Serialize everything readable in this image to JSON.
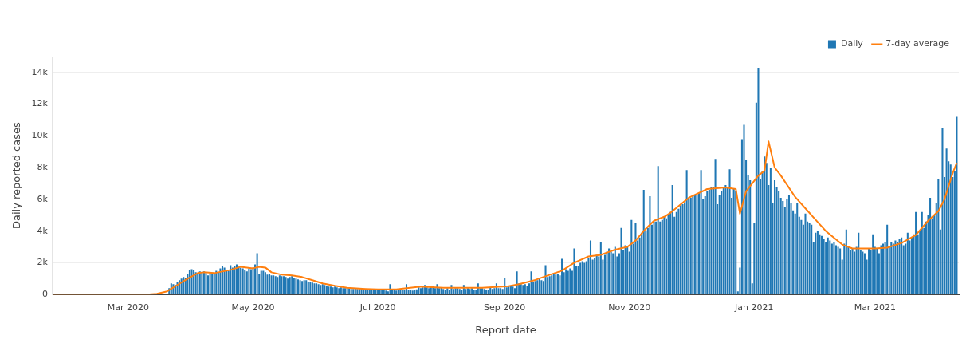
{
  "chart_data": {
    "type": "bar",
    "xlabel": "Report date",
    "ylabel": "Daily reported cases",
    "xlim": [
      "2020-01-24",
      "2021-04-11"
    ],
    "xticks": [
      {
        "value": "2020-03-01",
        "label": "Mar 2020"
      },
      {
        "value": "2020-05-01",
        "label": "May 2020"
      },
      {
        "value": "2020-07-01",
        "label": "Jul 2020"
      },
      {
        "value": "2020-09-01",
        "label": "Sep 2020"
      },
      {
        "value": "2020-11-01",
        "label": "Nov 2020"
      },
      {
        "value": "2021-01-01",
        "label": "Jan 2021"
      },
      {
        "value": "2021-03-01",
        "label": "Mar 2021"
      }
    ],
    "ylim": [
      0,
      15000
    ],
    "yticks": [
      0,
      {
        "value": 2000,
        "label": "2k"
      },
      {
        "value": 4000,
        "label": "4k"
      },
      {
        "value": 6000,
        "label": "6k"
      },
      {
        "value": 8000,
        "label": "8k"
      },
      {
        "value": 10000,
        "label": "10k"
      },
      {
        "value": 12000,
        "label": "12k"
      },
      {
        "value": 14000,
        "label": "14k"
      }
    ],
    "grid": "y",
    "legend": "top right",
    "x": [
      "2020-03-21",
      "2020-03-22",
      "2020-03-23",
      "2020-03-24",
      "2020-03-25",
      "2020-03-26",
      "2020-03-27",
      "2020-03-28",
      "2020-03-29",
      "2020-03-30",
      "2020-03-31",
      "2020-04-01",
      "2020-04-02",
      "2020-04-03",
      "2020-04-04",
      "2020-04-05",
      "2020-04-06",
      "2020-04-07",
      "2020-04-08",
      "2020-04-09",
      "2020-04-10",
      "2020-04-11",
      "2020-04-12",
      "2020-04-13",
      "2020-04-14",
      "2020-04-15",
      "2020-04-16",
      "2020-04-17",
      "2020-04-18",
      "2020-04-19",
      "2020-04-20",
      "2020-04-21",
      "2020-04-22",
      "2020-04-23",
      "2020-04-24",
      "2020-04-25",
      "2020-04-26",
      "2020-04-27",
      "2020-04-28",
      "2020-04-29",
      "2020-04-30",
      "2020-05-01",
      "2020-05-02",
      "2020-05-03",
      "2020-05-04",
      "2020-05-05",
      "2020-05-06",
      "2020-05-07",
      "2020-05-08",
      "2020-05-09",
      "2020-05-10",
      "2020-05-11",
      "2020-05-12",
      "2020-05-13",
      "2020-05-14",
      "2020-05-15",
      "2020-05-16",
      "2020-05-17",
      "2020-05-18",
      "2020-05-19",
      "2020-05-20",
      "2020-05-21",
      "2020-05-22",
      "2020-05-23",
      "2020-05-24",
      "2020-05-25",
      "2020-05-26",
      "2020-05-27",
      "2020-05-28",
      "2020-05-29",
      "2020-05-30",
      "2020-05-31",
      "2020-06-01",
      "2020-06-02",
      "2020-06-03",
      "2020-06-04",
      "2020-06-05",
      "2020-06-06",
      "2020-06-07",
      "2020-06-08",
      "2020-06-09",
      "2020-06-10",
      "2020-06-11",
      "2020-06-12",
      "2020-06-13",
      "2020-06-14",
      "2020-06-15",
      "2020-06-16",
      "2020-06-17",
      "2020-06-18",
      "2020-06-19",
      "2020-06-20",
      "2020-06-21",
      "2020-06-22",
      "2020-06-23",
      "2020-06-24",
      "2020-06-25",
      "2020-06-26",
      "2020-06-27",
      "2020-06-28",
      "2020-06-29",
      "2020-06-30",
      "2020-07-01",
      "2020-07-02",
      "2020-07-03",
      "2020-07-04",
      "2020-07-05",
      "2020-07-06",
      "2020-07-07",
      "2020-07-08",
      "2020-07-09",
      "2020-07-10",
      "2020-07-11",
      "2020-07-12",
      "2020-07-13",
      "2020-07-14",
      "2020-07-15",
      "2020-07-16",
      "2020-07-17",
      "2020-07-18",
      "2020-07-19",
      "2020-07-20",
      "2020-07-21",
      "2020-07-22",
      "2020-07-23",
      "2020-07-24",
      "2020-07-25",
      "2020-07-26",
      "2020-07-27",
      "2020-07-28",
      "2020-07-29",
      "2020-07-30",
      "2020-07-31",
      "2020-08-01",
      "2020-08-02",
      "2020-08-03",
      "2020-08-04",
      "2020-08-05",
      "2020-08-06",
      "2020-08-07",
      "2020-08-08",
      "2020-08-09",
      "2020-08-10",
      "2020-08-11",
      "2020-08-12",
      "2020-08-13",
      "2020-08-14",
      "2020-08-15",
      "2020-08-16",
      "2020-08-17",
      "2020-08-18",
      "2020-08-19",
      "2020-08-20",
      "2020-08-21",
      "2020-08-22",
      "2020-08-23",
      "2020-08-24",
      "2020-08-25",
      "2020-08-26",
      "2020-08-27",
      "2020-08-28",
      "2020-08-29",
      "2020-08-30",
      "2020-08-31",
      "2020-09-01",
      "2020-09-02",
      "2020-09-03",
      "2020-09-04",
      "2020-09-05",
      "2020-09-06",
      "2020-09-07",
      "2020-09-08",
      "2020-09-09",
      "2020-09-10",
      "2020-09-11",
      "2020-09-12",
      "2020-09-13",
      "2020-09-14",
      "2020-09-15",
      "2020-09-16",
      "2020-09-17",
      "2020-09-18",
      "2020-09-19",
      "2020-09-20",
      "2020-09-21",
      "2020-09-22",
      "2020-09-23",
      "2020-09-24",
      "2020-09-25",
      "2020-09-26",
      "2020-09-27",
      "2020-09-28",
      "2020-09-29",
      "2020-09-30",
      "2020-10-01",
      "2020-10-02",
      "2020-10-03",
      "2020-10-04",
      "2020-10-05",
      "2020-10-06",
      "2020-10-07",
      "2020-10-08",
      "2020-10-09",
      "2020-10-10",
      "2020-10-11",
      "2020-10-12",
      "2020-10-13",
      "2020-10-14",
      "2020-10-15",
      "2020-10-16",
      "2020-10-17",
      "2020-10-18",
      "2020-10-19",
      "2020-10-20",
      "2020-10-21",
      "2020-10-22",
      "2020-10-23",
      "2020-10-24",
      "2020-10-25",
      "2020-10-26",
      "2020-10-27",
      "2020-10-28",
      "2020-10-29",
      "2020-10-30",
      "2020-10-31",
      "2020-11-01",
      "2020-11-02",
      "2020-11-03",
      "2020-11-04",
      "2020-11-05",
      "2020-11-06",
      "2020-11-07",
      "2020-11-08",
      "2020-11-09",
      "2020-11-10",
      "2020-11-11",
      "2020-11-12",
      "2020-11-13",
      "2020-11-14",
      "2020-11-15",
      "2020-11-16",
      "2020-11-17",
      "2020-11-18",
      "2020-11-19",
      "2020-11-20",
      "2020-11-21",
      "2020-11-22",
      "2020-11-23",
      "2020-11-24",
      "2020-11-25",
      "2020-11-26",
      "2020-11-27",
      "2020-11-28",
      "2020-11-29",
      "2020-11-30",
      "2020-12-01",
      "2020-12-02",
      "2020-12-03",
      "2020-12-04",
      "2020-12-05",
      "2020-12-06",
      "2020-12-07",
      "2020-12-08",
      "2020-12-09",
      "2020-12-10",
      "2020-12-11",
      "2020-12-12",
      "2020-12-13",
      "2020-12-14",
      "2020-12-15",
      "2020-12-16",
      "2020-12-17",
      "2020-12-18",
      "2020-12-19",
      "2020-12-20",
      "2020-12-21",
      "2020-12-22",
      "2020-12-23",
      "2020-12-24",
      "2020-12-25",
      "2020-12-26",
      "2020-12-27",
      "2020-12-28",
      "2020-12-29",
      "2020-12-30",
      "2020-12-31",
      "2021-01-01",
      "2021-01-02",
      "2021-01-03",
      "2021-01-04",
      "2021-01-05",
      "2021-01-06",
      "2021-01-07",
      "2021-01-08",
      "2021-01-09",
      "2021-01-10",
      "2021-01-11",
      "2021-01-12",
      "2021-01-13",
      "2021-01-14",
      "2021-01-15",
      "2021-01-16",
      "2021-01-17",
      "2021-01-18",
      "2021-01-19",
      "2021-01-20",
      "2021-01-21",
      "2021-01-22",
      "2021-01-23",
      "2021-01-24",
      "2021-01-25",
      "2021-01-26",
      "2021-01-27",
      "2021-01-28",
      "2021-01-29",
      "2021-01-30",
      "2021-01-31",
      "2021-02-01",
      "2021-02-02",
      "2021-02-03",
      "2021-02-04",
      "2021-02-05",
      "2021-02-06",
      "2021-02-07",
      "2021-02-08",
      "2021-02-09",
      "2021-02-10",
      "2021-02-11",
      "2021-02-12",
      "2021-02-13",
      "2021-02-14",
      "2021-02-15",
      "2021-02-16",
      "2021-02-17",
      "2021-02-18",
      "2021-02-19",
      "2021-02-20",
      "2021-02-21",
      "2021-02-22",
      "2021-02-23",
      "2021-02-24",
      "2021-02-25",
      "2021-02-26",
      "2021-02-27",
      "2021-02-28",
      "2021-03-01",
      "2021-03-02",
      "2021-03-03",
      "2021-03-04",
      "2021-03-05",
      "2021-03-06",
      "2021-03-07",
      "2021-03-08",
      "2021-03-09",
      "2021-03-10",
      "2021-03-11",
      "2021-03-12",
      "2021-03-13",
      "2021-03-14",
      "2021-03-15",
      "2021-03-16",
      "2021-03-17",
      "2021-03-18",
      "2021-03-19",
      "2021-03-20",
      "2021-03-21",
      "2021-03-22",
      "2021-03-23",
      "2021-03-24",
      "2021-03-25",
      "2021-03-26",
      "2021-03-27",
      "2021-03-28",
      "2021-03-29",
      "2021-03-30",
      "2021-03-31",
      "2021-04-01",
      "2021-04-02",
      "2021-04-03",
      "2021-04-04",
      "2021-04-05",
      "2021-04-06",
      "2021-04-07",
      "2021-04-08",
      "2021-04-09",
      "2021-04-10"
    ],
    "series": [
      {
        "name": "Daily",
        "color": "#1f77b4",
        "values": [
          400,
          700,
          650,
          600,
          800,
          900,
          1000,
          1100,
          1050,
          1300,
          1550,
          1600,
          1550,
          1400,
          1300,
          1450,
          1400,
          1450,
          1350,
          1200,
          1400,
          1350,
          1300,
          1500,
          1400,
          1650,
          1800,
          1700,
          1550,
          1500,
          1850,
          1700,
          1800,
          1900,
          1750,
          1700,
          1650,
          1550,
          1450,
          1650,
          1600,
          1700,
          1900,
          2600,
          1300,
          1500,
          1500,
          1400,
          1250,
          1300,
          1200,
          1200,
          1150,
          1100,
          1200,
          1150,
          1150,
          1100,
          1000,
          1100,
          1150,
          1050,
          1000,
          950,
          900,
          850,
          900,
          900,
          800,
          800,
          750,
          700,
          700,
          650,
          600,
          650,
          600,
          550,
          500,
          500,
          450,
          500,
          450,
          400,
          450,
          400,
          400,
          450,
          400,
          350,
          350,
          400,
          350,
          350,
          400,
          350,
          300,
          350,
          300,
          300,
          350,
          300,
          300,
          300,
          350,
          300,
          250,
          200,
          650,
          300,
          300,
          250,
          300,
          280,
          280,
          300,
          650,
          300,
          300,
          250,
          300,
          320,
          450,
          400,
          450,
          600,
          450,
          400,
          500,
          550,
          400,
          650,
          400,
          450,
          350,
          300,
          400,
          300,
          600,
          350,
          400,
          400,
          350,
          300,
          600,
          350,
          400,
          350,
          400,
          300,
          300,
          700,
          400,
          400,
          350,
          300,
          300,
          450,
          350,
          400,
          700,
          400,
          400,
          350,
          1050,
          450,
          500,
          550,
          500,
          400,
          1450,
          700,
          650,
          600,
          650,
          550,
          700,
          1450,
          800,
          850,
          900,
          1000,
          900,
          850,
          1850,
          1100,
          1150,
          1200,
          1300,
          1250,
          1300,
          1200,
          2250,
          1400,
          1600,
          1500,
          1650,
          1500,
          2900,
          1800,
          1800,
          2000,
          2100,
          2000,
          2100,
          2300,
          3400,
          2200,
          2300,
          2500,
          2400,
          3300,
          2200,
          2500,
          2700,
          2900,
          2700,
          2600,
          3000,
          2400,
          2600,
          4200,
          2800,
          3100,
          3000,
          2700,
          4700,
          3200,
          4500,
          3400,
          3600,
          3900,
          6600,
          4000,
          4200,
          6200,
          4400,
          4600,
          4600,
          8100,
          4600,
          4700,
          4900,
          4800,
          5000,
          5200,
          6900,
          4900,
          5200,
          5400,
          5600,
          5700,
          5800,
          7850,
          6000,
          6100,
          6200,
          6300,
          6300,
          6400,
          7850,
          6000,
          6200,
          6500,
          6600,
          6800,
          6800,
          8550,
          5700,
          6300,
          6500,
          6700,
          6900,
          6700,
          7900,
          6100,
          6700,
          6500,
          200,
          1700,
          9800,
          10700,
          8500,
          7500,
          7200,
          700,
          4500,
          12100,
          14300,
          7300,
          7800,
          8700,
          8300,
          6900,
          8000,
          5800,
          7200,
          6800,
          6500,
          6100,
          5900,
          5500,
          6000,
          6300,
          5800,
          5300,
          5100,
          5800,
          4900,
          4700,
          4400,
          5100,
          4600,
          4500,
          4400,
          3300,
          3900,
          4000,
          3800,
          3700,
          3500,
          3300,
          3600,
          3400,
          3200,
          3300,
          3100,
          3000,
          2900,
          2200,
          3200,
          4100,
          3000,
          2800,
          2900,
          2700,
          3000,
          3900,
          2800,
          2700,
          2600,
          2200,
          2900,
          2800,
          3800,
          3000,
          2900,
          2600,
          3100,
          3200,
          3300,
          4400,
          3000,
          3300,
          3200,
          3400,
          3300,
          3500,
          3600,
          3100,
          3200,
          3900,
          3400,
          3600,
          3800,
          5200,
          3800,
          4000,
          5200,
          4200,
          4600,
          5000,
          6100,
          4800,
          5000,
          5800,
          7300,
          4100,
          10500,
          7400,
          9200,
          8400,
          8200,
          7400,
          7800,
          11200
        ]
      },
      {
        "name": "7-day average",
        "type": "line",
        "color": "#ff7f0e",
        "x": [
          "2020-01-24",
          "2020-03-10",
          "2020-03-15",
          "2020-03-20",
          "2020-03-25",
          "2020-03-30",
          "2020-04-04",
          "2020-04-07",
          "2020-04-12",
          "2020-04-16",
          "2020-04-20",
          "2020-04-25",
          "2020-05-01",
          "2020-05-04",
          "2020-05-07",
          "2020-05-10",
          "2020-05-15",
          "2020-05-20",
          "2020-05-25",
          "2020-05-30",
          "2020-06-04",
          "2020-06-10",
          "2020-06-16",
          "2020-06-25",
          "2020-07-01",
          "2020-07-10",
          "2020-07-22",
          "2020-08-02",
          "2020-08-21",
          "2020-09-03",
          "2020-09-08",
          "2020-09-16",
          "2020-09-22",
          "2020-09-29",
          "2020-10-05",
          "2020-10-12",
          "2020-10-18",
          "2020-10-25",
          "2020-10-31",
          "2020-11-04",
          "2020-11-09",
          "2020-11-13",
          "2020-11-18",
          "2020-11-21",
          "2020-11-30",
          "2020-12-09",
          "2020-12-18",
          "2020-12-23",
          "2020-12-25",
          "2020-12-28",
          "2021-01-03",
          "2021-01-06",
          "2021-01-08",
          "2021-01-11",
          "2021-01-14",
          "2021-01-21",
          "2021-01-29",
          "2021-02-05",
          "2021-02-13",
          "2021-02-18",
          "2021-03-01",
          "2021-03-07",
          "2021-03-14",
          "2021-03-21",
          "2021-03-27",
          "2021-04-01",
          "2021-04-04",
          "2021-04-08",
          "2021-04-10"
        ],
        "values": [
          0,
          0,
          50,
          200,
          600,
          1000,
          1350,
          1400,
          1350,
          1450,
          1550,
          1750,
          1650,
          1750,
          1700,
          1400,
          1250,
          1200,
          1100,
          900,
          700,
          550,
          420,
          350,
          320,
          330,
          500,
          420,
          420,
          530,
          650,
          920,
          1200,
          1500,
          2000,
          2400,
          2500,
          2830,
          3000,
          3400,
          4150,
          4650,
          4900,
          5150,
          6100,
          6650,
          6750,
          6650,
          5100,
          6500,
          7500,
          7800,
          9650,
          8000,
          7500,
          6150,
          5000,
          4000,
          3150,
          2900,
          2900,
          2950,
          3250,
          3750,
          4650,
          5250,
          6000,
          7650,
          8300
        ]
      }
    ]
  }
}
